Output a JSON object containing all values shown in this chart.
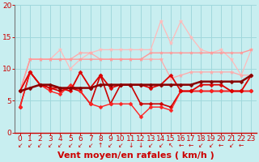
{
  "xlabel": "Vent moyen/en rafales ( km/h )",
  "xlim": [
    -0.5,
    23.5
  ],
  "ylim": [
    0,
    20
  ],
  "yticks": [
    0,
    5,
    10,
    15,
    20
  ],
  "xticks": [
    0,
    1,
    2,
    3,
    4,
    5,
    6,
    7,
    8,
    9,
    10,
    11,
    12,
    13,
    14,
    15,
    16,
    17,
    18,
    19,
    20,
    21,
    22,
    23
  ],
  "background_color": "#c8eef0",
  "grid_color": "#a0d8dc",
  "series": [
    {
      "y": [
        6.5,
        11.5,
        11.5,
        11.5,
        13.0,
        10.0,
        11.5,
        12.5,
        13.0,
        13.0,
        13.0,
        13.0,
        13.0,
        13.0,
        17.5,
        14.0,
        17.5,
        15.0,
        13.0,
        12.5,
        13.0,
        11.5,
        9.0,
        13.0
      ],
      "color": "#ffbbbb",
      "linewidth": 0.9,
      "marker": "*",
      "markersize": 3.5,
      "alpha": 1.0,
      "zorder": 2
    },
    {
      "y": [
        6.5,
        11.5,
        11.5,
        11.5,
        11.5,
        11.5,
        12.5,
        12.5,
        11.5,
        11.5,
        11.5,
        11.5,
        11.5,
        11.5,
        11.5,
        8.5,
        9.0,
        9.5,
        9.5,
        9.5,
        9.5,
        9.5,
        9.0,
        9.0
      ],
      "color": "#ffaaaa",
      "linewidth": 0.9,
      "marker": "*",
      "markersize": 3.5,
      "alpha": 1.0,
      "zorder": 2
    },
    {
      "y": [
        6.5,
        11.5,
        11.5,
        11.5,
        11.5,
        11.5,
        11.5,
        11.5,
        11.5,
        11.5,
        11.5,
        11.5,
        11.5,
        12.5,
        12.5,
        12.5,
        12.5,
        12.5,
        12.5,
        12.5,
        12.5,
        12.5,
        12.5,
        13.0
      ],
      "color": "#ff9999",
      "linewidth": 1.0,
      "marker": "*",
      "markersize": 3.0,
      "alpha": 1.0,
      "zorder": 3
    },
    {
      "y": [
        6.5,
        9.5,
        7.5,
        7.0,
        7.0,
        6.5,
        9.5,
        7.0,
        9.0,
        7.0,
        7.5,
        7.5,
        7.5,
        7.0,
        7.5,
        9.0,
        6.5,
        6.5,
        7.5,
        7.5,
        7.5,
        6.5,
        6.5,
        9.0
      ],
      "color": "#dd0000",
      "linewidth": 1.3,
      "marker": "D",
      "markersize": 2.5,
      "alpha": 1.0,
      "zorder": 5
    },
    {
      "y": [
        4.0,
        9.5,
        7.5,
        7.0,
        6.5,
        7.0,
        6.5,
        4.5,
        9.0,
        4.5,
        7.5,
        7.5,
        4.5,
        4.5,
        4.5,
        4.0,
        6.5,
        6.5,
        6.5,
        6.5,
        6.5,
        6.5,
        6.5,
        6.5
      ],
      "color": "#cc0000",
      "linewidth": 1.2,
      "marker": "D",
      "markersize": 2.5,
      "alpha": 1.0,
      "zorder": 4
    },
    {
      "y": [
        6.5,
        7.0,
        7.5,
        7.5,
        7.0,
        7.0,
        7.0,
        7.0,
        7.5,
        7.5,
        7.5,
        7.5,
        7.5,
        7.5,
        7.5,
        7.5,
        7.5,
        7.5,
        8.0,
        8.0,
        8.0,
        8.0,
        8.0,
        9.0
      ],
      "color": "#880000",
      "linewidth": 1.8,
      "marker": "D",
      "markersize": 2.5,
      "alpha": 1.0,
      "zorder": 6
    },
    {
      "y": [
        4.0,
        9.5,
        7.5,
        6.5,
        6.0,
        7.5,
        6.5,
        4.5,
        4.0,
        4.5,
        4.5,
        4.5,
        2.5,
        4.0,
        4.0,
        3.5,
        6.5,
        6.5,
        6.5,
        6.5,
        6.5,
        6.5,
        6.5,
        6.5
      ],
      "color": "#ff2222",
      "linewidth": 1.0,
      "marker": "D",
      "markersize": 2.5,
      "alpha": 1.0,
      "zorder": 4
    }
  ],
  "wind_arrows": [
    "↙",
    "↙",
    "↙",
    "↙",
    "↙",
    "↙",
    "↙",
    "↙",
    "↑",
    "↙",
    "↙",
    "↓",
    "↓",
    "↙",
    "↙",
    "↖",
    "←",
    "←",
    "↙",
    "↙",
    "←",
    "↙",
    "←"
  ],
  "xlabel_color": "#cc0000",
  "xlabel_fontsize": 8,
  "tick_color": "#cc0000",
  "tick_fontsize": 6.5
}
